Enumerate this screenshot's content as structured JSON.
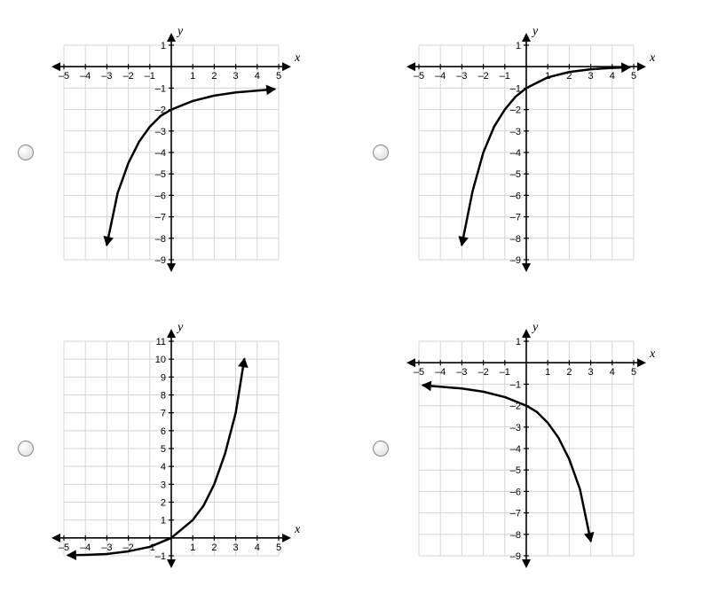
{
  "charts": [
    {
      "id": "chart-top-left",
      "xlim": [
        -5,
        5
      ],
      "ylim": [
        -9,
        1
      ],
      "xtick_step": 1,
      "ytick_step": 1,
      "grid_color": "#d5d5d5",
      "axis_color": "#000000",
      "curve_color": "#000000",
      "background_color": "#ffffff",
      "curve_width": 2.5,
      "x_axis_label": "x",
      "y_axis_label": "y",
      "label_fontsize": 14,
      "tick_fontsize": 11,
      "asymptote_y": -1,
      "curve_points": [
        [
          -3,
          -8.3
        ],
        [
          -2.5,
          -5.9
        ],
        [
          -2,
          -4.5
        ],
        [
          -1.5,
          -3.5
        ],
        [
          -1,
          -2.8
        ],
        [
          -0.5,
          -2.3
        ],
        [
          0,
          -2
        ],
        [
          1,
          -1.6
        ],
        [
          2,
          -1.35
        ],
        [
          3,
          -1.2
        ],
        [
          4,
          -1.12
        ],
        [
          4.8,
          -1.05
        ]
      ],
      "arrow_start": true,
      "arrow_end": true
    },
    {
      "id": "chart-top-right",
      "xlim": [
        -5,
        5
      ],
      "ylim": [
        -9,
        1
      ],
      "xtick_step": 1,
      "ytick_step": 1,
      "grid_color": "#d5d5d5",
      "axis_color": "#000000",
      "curve_color": "#000000",
      "background_color": "#ffffff",
      "curve_width": 2.5,
      "x_axis_label": "x",
      "y_axis_label": "y",
      "label_fontsize": 14,
      "tick_fontsize": 11,
      "asymptote_y": 0,
      "curve_points": [
        [
          -3,
          -8.3
        ],
        [
          -2.5,
          -5.8
        ],
        [
          -2,
          -4
        ],
        [
          -1.5,
          -2.8
        ],
        [
          -1,
          -2
        ],
        [
          -0.5,
          -1.4
        ],
        [
          0,
          -1
        ],
        [
          1,
          -0.5
        ],
        [
          2,
          -0.25
        ],
        [
          3,
          -0.12
        ],
        [
          4,
          -0.06
        ],
        [
          4.8,
          -0.03
        ]
      ],
      "arrow_start": true,
      "arrow_end": true
    },
    {
      "id": "chart-bottom-left",
      "xlim": [
        -5,
        5
      ],
      "ylim": [
        -1,
        11
      ],
      "xtick_step": 1,
      "ytick_step": 1,
      "grid_color": "#d5d5d5",
      "axis_color": "#000000",
      "curve_color": "#000000",
      "background_color": "#ffffff",
      "curve_width": 2.5,
      "x_axis_label": "x",
      "y_axis_label": "y",
      "label_fontsize": 14,
      "tick_fontsize": 11,
      "asymptote_y": -1,
      "curve_points": [
        [
          -4.8,
          -0.97
        ],
        [
          -4,
          -0.95
        ],
        [
          -3,
          -0.9
        ],
        [
          -2,
          -0.75
        ],
        [
          -1,
          -0.5
        ],
        [
          0,
          0
        ],
        [
          1,
          1
        ],
        [
          1.5,
          1.8
        ],
        [
          2,
          3
        ],
        [
          2.5,
          4.7
        ],
        [
          3,
          7
        ],
        [
          3.4,
          10
        ]
      ],
      "arrow_start": true,
      "arrow_end": true
    },
    {
      "id": "chart-bottom-right",
      "xlim": [
        -5,
        5
      ],
      "ylim": [
        -9,
        1
      ],
      "xtick_step": 1,
      "ytick_step": 1,
      "grid_color": "#d5d5d5",
      "axis_color": "#000000",
      "curve_color": "#000000",
      "background_color": "#ffffff",
      "curve_width": 2.5,
      "x_axis_label": "x",
      "y_axis_label": "y",
      "label_fontsize": 14,
      "tick_fontsize": 11,
      "asymptote_y": -1,
      "curve_points": [
        [
          -4.8,
          -1.05
        ],
        [
          -4,
          -1.12
        ],
        [
          -3,
          -1.2
        ],
        [
          -2,
          -1.35
        ],
        [
          -1,
          -1.6
        ],
        [
          0,
          -2
        ],
        [
          0.5,
          -2.3
        ],
        [
          1,
          -2.8
        ],
        [
          1.5,
          -3.5
        ],
        [
          2,
          -4.5
        ],
        [
          2.5,
          -5.9
        ],
        [
          3,
          -8.3
        ]
      ],
      "arrow_start": true,
      "arrow_end": true
    }
  ]
}
